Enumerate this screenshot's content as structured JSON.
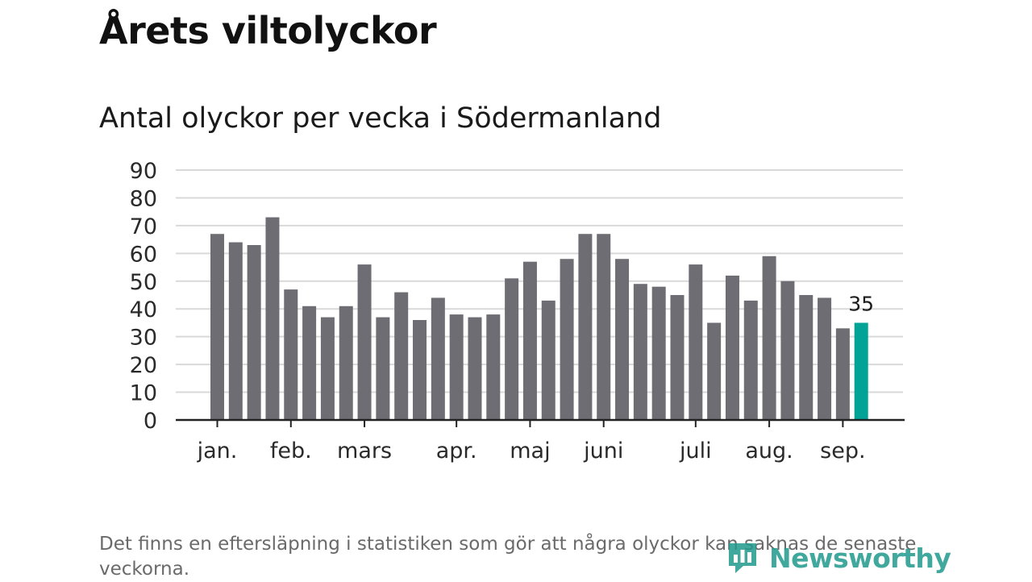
{
  "header": {
    "title": "Årets viltolyckor",
    "subtitle": "Antal olyckor per vecka i Södermanland"
  },
  "footer": {
    "note": "Det finns en eftersläpning i statistiken som gör att några olyckor kan saknas de senaste veckorna.",
    "brand": "Newsworthy"
  },
  "colors": {
    "bar": "#6e6d73",
    "highlight": "#00a395",
    "grid": "#d9d9d9",
    "axis": "#222222",
    "brand": "#1f9a8c"
  },
  "chart_data": {
    "type": "bar",
    "title": "Antal olyckor per vecka i Södermanland",
    "xlabel": "",
    "ylabel": "",
    "ylim": [
      0,
      90
    ],
    "yticks": [
      0,
      10,
      20,
      30,
      40,
      50,
      60,
      70,
      80,
      90
    ],
    "grid": true,
    "values": [
      67,
      64,
      63,
      73,
      47,
      41,
      37,
      41,
      56,
      37,
      46,
      36,
      44,
      38,
      37,
      38,
      51,
      57,
      43,
      58,
      67,
      67,
      58,
      49,
      48,
      45,
      56,
      35,
      52,
      43,
      59,
      50,
      45,
      44,
      33,
      35
    ],
    "highlight_index": 35,
    "highlight_label": "35",
    "month_labels": [
      {
        "label": "jan.",
        "bar": 0
      },
      {
        "label": "feb.",
        "bar": 4
      },
      {
        "label": "mars",
        "bar": 8
      },
      {
        "label": "apr.",
        "bar": 13
      },
      {
        "label": "maj",
        "bar": 17
      },
      {
        "label": "juni",
        "bar": 21
      },
      {
        "label": "juli",
        "bar": 26
      },
      {
        "label": "aug.",
        "bar": 30
      },
      {
        "label": "sep.",
        "bar": 34
      }
    ]
  }
}
